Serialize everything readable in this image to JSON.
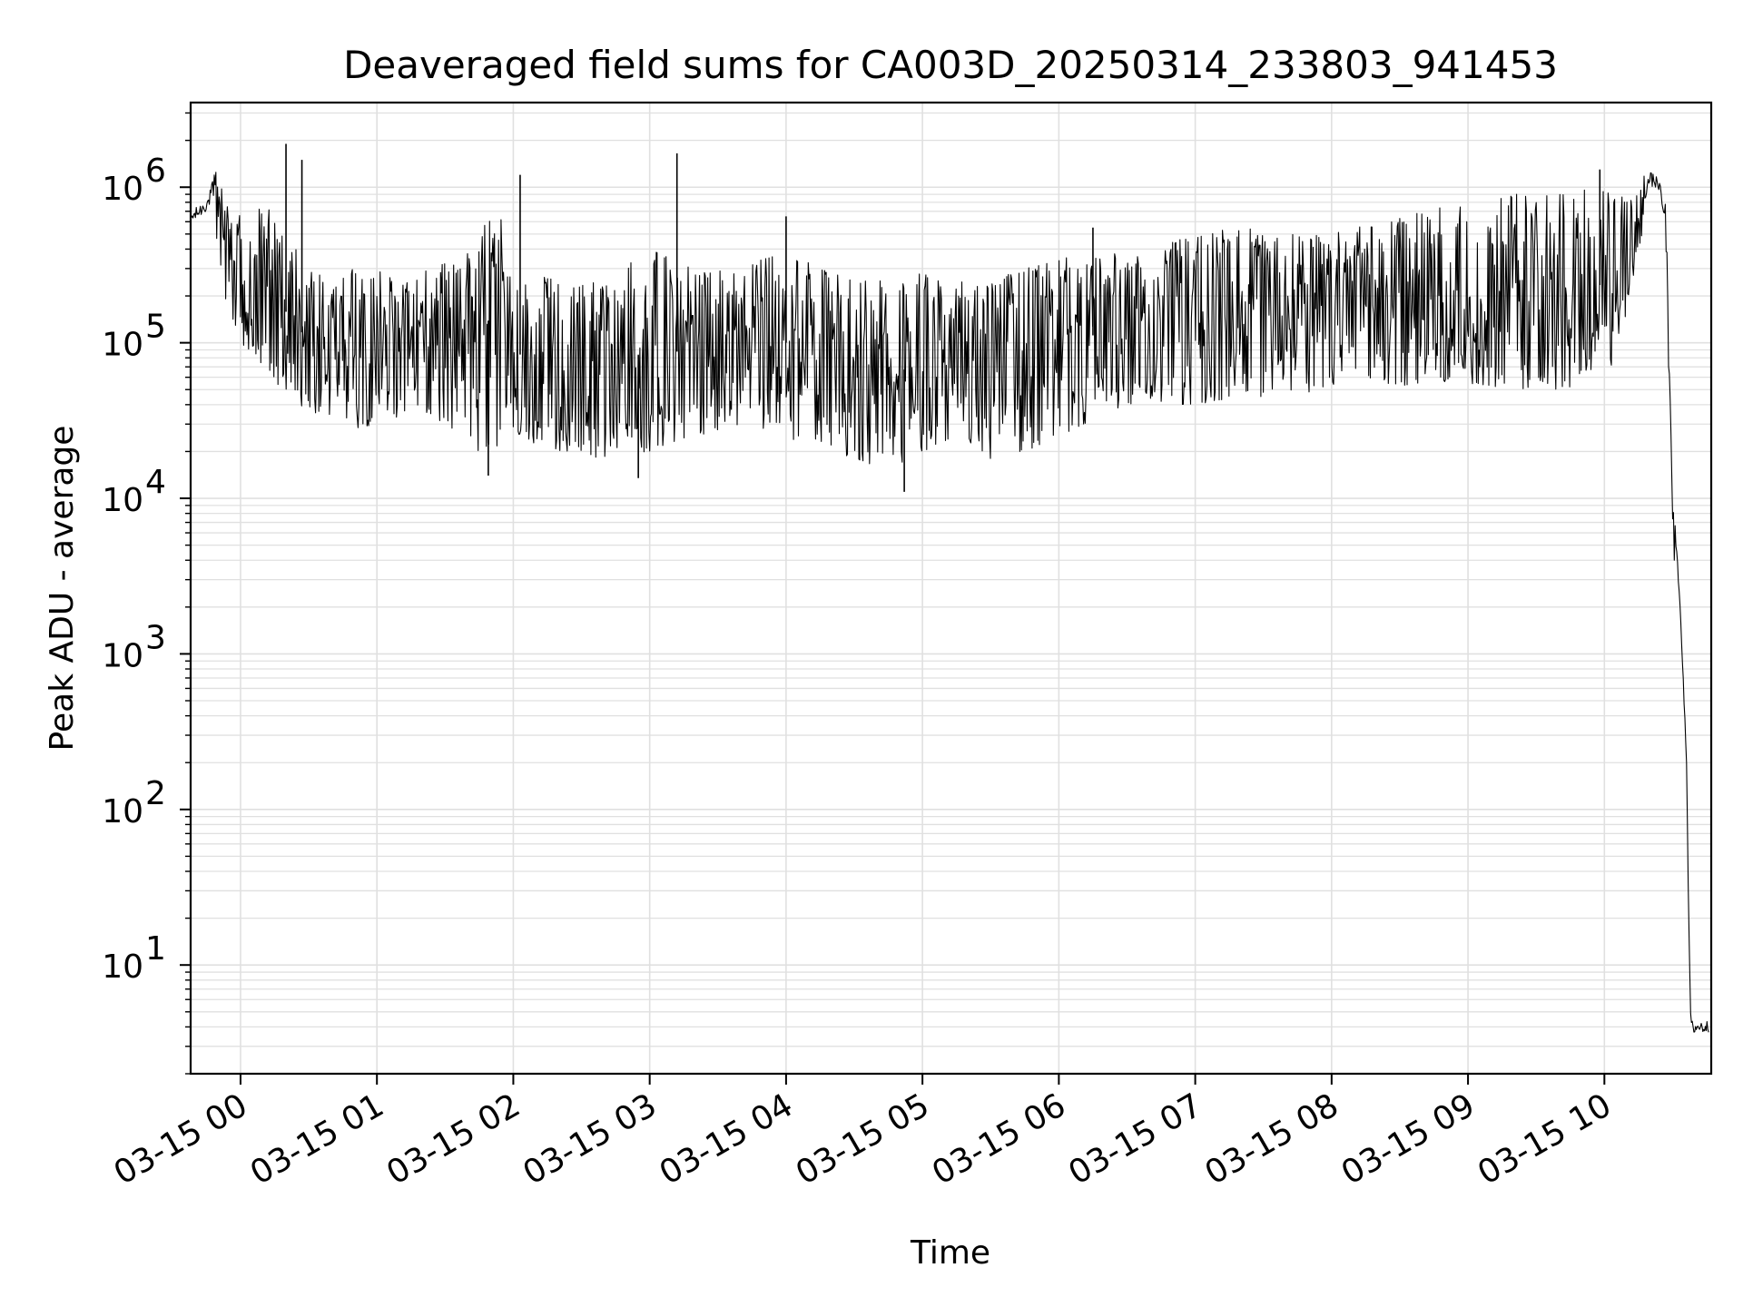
{
  "chart_data": {
    "type": "line",
    "title": "Deaveraged field sums for CA003D_20250314_233803_941453",
    "xlabel": "Time",
    "ylabel": "Peak ADU - average",
    "yscale": "log",
    "grid": true,
    "line_color": "#000000",
    "grid_color": "#e0e0e0",
    "xlim": [
      "2025-03-14 23:38:03",
      "2025-03-15 10:47:00"
    ],
    "ylim": [
      2,
      3500000
    ],
    "x_ticks": [
      {
        "time": "2025-03-15 00:00",
        "label": "03-15 00"
      },
      {
        "time": "2025-03-15 01:00",
        "label": "03-15 01"
      },
      {
        "time": "2025-03-15 02:00",
        "label": "03-15 02"
      },
      {
        "time": "2025-03-15 03:00",
        "label": "03-15 03"
      },
      {
        "time": "2025-03-15 04:00",
        "label": "03-15 04"
      },
      {
        "time": "2025-03-15 05:00",
        "label": "03-15 05"
      },
      {
        "time": "2025-03-15 06:00",
        "label": "03-15 06"
      },
      {
        "time": "2025-03-15 07:00",
        "label": "03-15 07"
      },
      {
        "time": "2025-03-15 08:00",
        "label": "03-15 08"
      },
      {
        "time": "2025-03-15 09:00",
        "label": "03-15 09"
      },
      {
        "time": "2025-03-15 10:00",
        "label": "03-15 10"
      }
    ],
    "y_ticks": [
      {
        "value": 10,
        "base": "10",
        "exp": "1"
      },
      {
        "value": 100,
        "base": "10",
        "exp": "2"
      },
      {
        "value": 1000,
        "base": "10",
        "exp": "3"
      },
      {
        "value": 10000,
        "base": "10",
        "exp": "4"
      },
      {
        "value": 100000,
        "base": "10",
        "exp": "5"
      },
      {
        "value": 1000000,
        "base": "10",
        "exp": "6"
      }
    ],
    "series": [
      {
        "x": [
          "2025-03-14 23:38",
          "2025-03-14 23:42",
          "2025-03-14 23:46",
          "2025-03-14 23:48",
          "2025-03-14 23:50",
          "2025-03-14 23:53",
          "2025-03-14 23:56",
          "2025-03-15 00:00",
          "2025-03-15 00:05",
          "2025-03-15 00:10",
          "2025-03-15 00:15",
          "2025-03-15 00:20",
          "2025-03-15 00:30",
          "2025-03-15 00:40",
          "2025-03-15 00:50",
          "2025-03-15 01:00",
          "2025-03-15 01:15",
          "2025-03-15 01:30",
          "2025-03-15 01:45",
          "2025-03-15 01:50",
          "2025-03-15 02:00",
          "2025-03-15 02:20",
          "2025-03-15 02:40",
          "2025-03-15 03:00",
          "2025-03-15 03:20",
          "2025-03-15 03:40",
          "2025-03-15 04:00",
          "2025-03-15 04:15",
          "2025-03-15 04:30",
          "2025-03-15 04:45",
          "2025-03-15 05:00",
          "2025-03-15 05:15",
          "2025-03-15 05:30",
          "2025-03-15 05:45",
          "2025-03-15 06:00",
          "2025-03-15 06:20",
          "2025-03-15 06:40",
          "2025-03-15 07:00",
          "2025-03-15 07:20",
          "2025-03-15 07:40",
          "2025-03-15 08:00",
          "2025-03-15 08:20",
          "2025-03-15 08:40",
          "2025-03-15 09:00",
          "2025-03-15 09:20",
          "2025-03-15 09:40",
          "2025-03-15 09:55",
          "2025-03-15 10:05",
          "2025-03-15 10:10",
          "2025-03-15 10:15",
          "2025-03-15 10:17",
          "2025-03-15 10:20",
          "2025-03-15 10:24",
          "2025-03-15 10:27",
          "2025-03-15 10:30",
          "2025-03-15 10:33",
          "2025-03-15 10:36",
          "2025-03-15 10:37",
          "2025-03-15 10:38",
          "2025-03-15 10:39",
          "2025-03-15 10:40",
          "2025-03-15 10:41",
          "2025-03-15 10:42",
          "2025-03-15 10:43",
          "2025-03-15 10:44",
          "2025-03-15 10:45",
          "2025-03-15 10:46"
        ],
        "lo": [
          500000,
          550000,
          650000,
          800000,
          250000,
          200000,
          150000,
          100000,
          70000,
          60000,
          55000,
          50000,
          35000,
          30000,
          28000,
          30000,
          35000,
          30000,
          20000,
          20000,
          25000,
          20000,
          18000,
          20000,
          25000,
          30000,
          25000,
          20000,
          18000,
          15000,
          20000,
          25000,
          18000,
          20000,
          25000,
          35000,
          40000,
          40000,
          45000,
          45000,
          50000,
          50000,
          55000,
          55000,
          50000,
          50000,
          50000,
          70000,
          150000,
          300000,
          600000,
          1000000,
          1000000,
          400000,
          5000,
          2000,
          200,
          20,
          4,
          4,
          4,
          4,
          4,
          4,
          4,
          4,
          4
        ],
        "hi": [
          800000,
          900000,
          1000000,
          1400000,
          1200000,
          900000,
          600000,
          700000,
          500000,
          900000,
          600000,
          500000,
          300000,
          250000,
          300000,
          300000,
          250000,
          350000,
          400000,
          1200000,
          300000,
          250000,
          250000,
          400000,
          300000,
          300000,
          400000,
          300000,
          250000,
          250000,
          280000,
          250000,
          250000,
          300000,
          350000,
          400000,
          400000,
          500000,
          550000,
          500000,
          500000,
          600000,
          700000,
          800000,
          900000,
          900000,
          1000000,
          1000000,
          800000,
          900000,
          1200000,
          1300000,
          1100000,
          800000,
          10000,
          3500,
          300,
          30,
          4,
          4,
          4,
          4,
          4,
          4,
          4,
          4,
          4
        ]
      }
    ],
    "spikes": [
      {
        "x": "2025-03-15 00:20",
        "y": 1900000
      },
      {
        "x": "2025-03-15 00:27",
        "y": 1500000
      },
      {
        "x": "2025-03-15 02:03",
        "y": 1200000
      },
      {
        "x": "2025-03-15 03:12",
        "y": 1650000
      },
      {
        "x": "2025-03-15 04:00",
        "y": 650000
      },
      {
        "x": "2025-03-15 06:15",
        "y": 550000
      },
      {
        "x": "2025-03-15 09:58",
        "y": 1300000
      },
      {
        "x": "2025-03-15 04:52",
        "y": 11000
      },
      {
        "x": "2025-03-15 01:49",
        "y": 14000
      },
      {
        "x": "2025-03-15 02:55",
        "y": 13500
      }
    ]
  }
}
